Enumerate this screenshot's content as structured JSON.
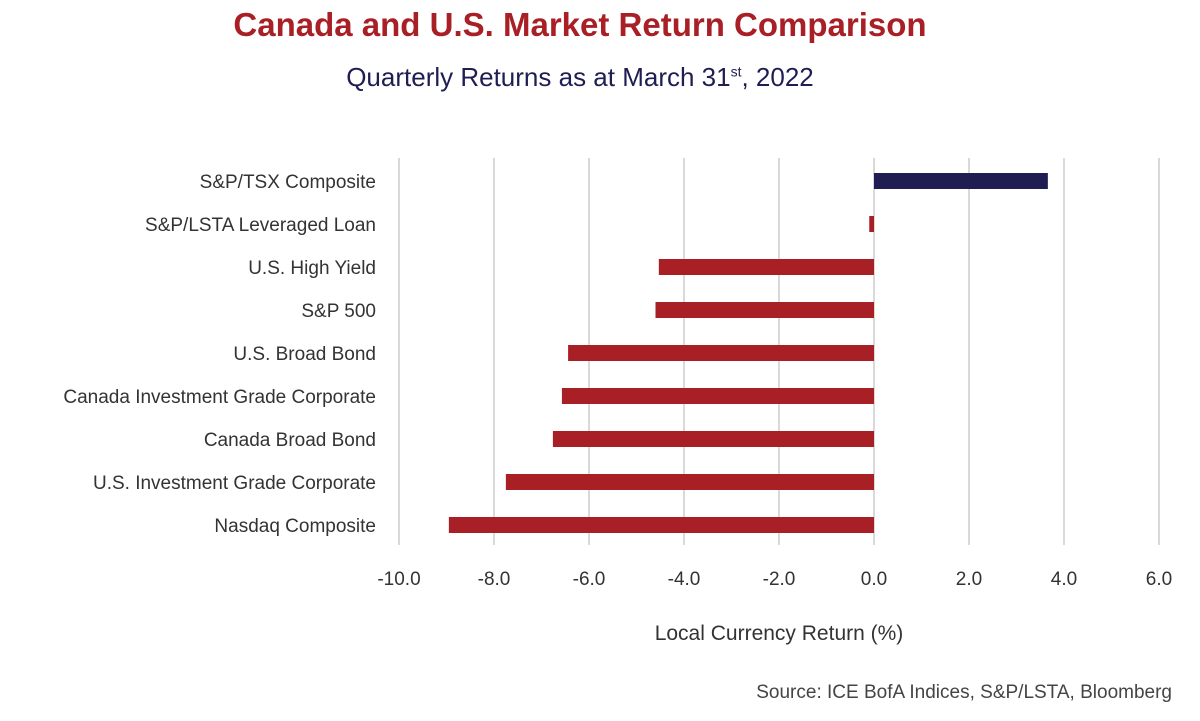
{
  "chart_data": {
    "type": "bar",
    "orientation": "horizontal",
    "title": "Canada and U.S. Market Return Comparison",
    "subtitle": {
      "pre": "Quarterly Returns as at March 31",
      "sup": "st",
      "post": ", 2022"
    },
    "categories": [
      "S&P/TSX Composite",
      "S&P/LSTA Leveraged Loan",
      "U.S. High Yield",
      "S&P 500",
      "U.S. Broad Bond",
      "Canada Investment Grade Corporate",
      "Canada Broad Bond",
      "U.S. Investment Grade Corporate",
      "Nasdaq Composite"
    ],
    "values": [
      3.66,
      -0.1,
      -4.53,
      -4.6,
      -6.44,
      -6.57,
      -6.76,
      -7.75,
      -8.95
    ],
    "colors": {
      "positive": "#1f1d52",
      "negative": "#a81f26",
      "grid": "#d9d9d9"
    },
    "xlabel": "Local Currency Return (%)",
    "ylabel": "",
    "xlim": [
      -10,
      6
    ],
    "xticks": [
      "-10.0",
      "-8.0",
      "-6.0",
      "-4.0",
      "-2.0",
      "0.0",
      "2.0",
      "4.0",
      "6.0"
    ],
    "grid": true,
    "source": "Source: ICE BofA Indices, S&P/LSTA, Bloomberg"
  }
}
